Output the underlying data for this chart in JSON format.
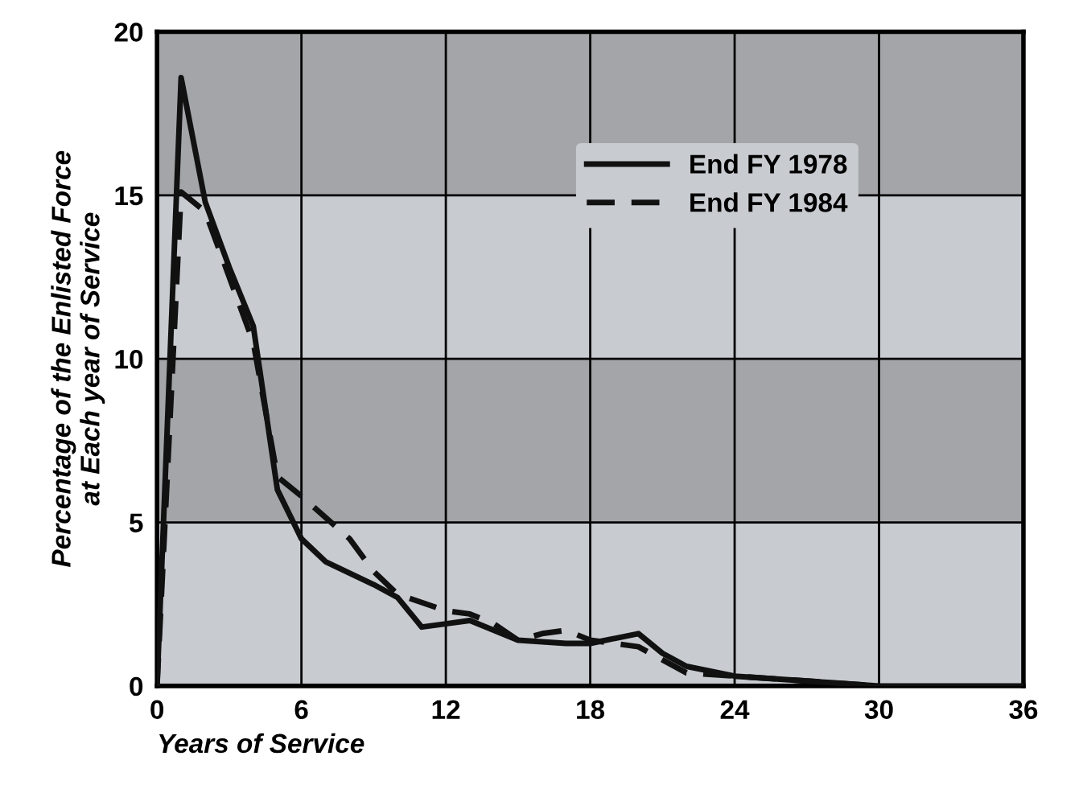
{
  "chart_data": {
    "type": "line",
    "xlabel": "Years of Service",
    "ylabel": "Percentage of the Enlisted Force\nat Each year of Service",
    "series": [
      {
        "name": "End FY 1978",
        "color": "#111111",
        "line_style": "solid",
        "x": [
          0,
          1,
          2,
          3,
          4,
          5,
          6,
          7,
          9,
          10,
          11,
          12,
          13,
          15,
          17,
          18,
          20,
          21,
          22,
          24,
          26,
          28,
          30,
          36
        ],
        "values": [
          0,
          18.6,
          14.8,
          12.8,
          11,
          6,
          4.5,
          3.8,
          3.1,
          2.7,
          1.8,
          1.9,
          2.0,
          1.4,
          1.3,
          1.3,
          1.6,
          1.0,
          0.6,
          0.3,
          0.2,
          0.1,
          0,
          0
        ]
      },
      {
        "name": "End FY 1984",
        "color": "#111111",
        "line_style": "dashed",
        "x": [
          0,
          1,
          2,
          3,
          4,
          5,
          6,
          8,
          9,
          10,
          12,
          13,
          14,
          15,
          16,
          17,
          18,
          20,
          21,
          22,
          24,
          28,
          30
        ],
        "values": [
          0,
          15.1,
          14.5,
          12.5,
          10.5,
          6.4,
          5.8,
          4.5,
          3.5,
          2.8,
          2.3,
          2.2,
          1.9,
          1.4,
          1.6,
          1.7,
          1.4,
          1.2,
          0.8,
          0.4,
          0.3,
          0.1,
          0
        ]
      }
    ],
    "bands": [
      {
        "axis": "y",
        "from": 0,
        "to": 5,
        "color": "#c8cbd0"
      },
      {
        "axis": "y",
        "from": 5,
        "to": 10,
        "color": "#a3a5a8"
      },
      {
        "axis": "y",
        "from": 10,
        "to": 15,
        "color": "#c8cbd0"
      },
      {
        "axis": "y",
        "from": 15,
        "to": 20,
        "color": "#a3a5a8"
      }
    ],
    "xlim": [
      0,
      36
    ],
    "ylim": [
      0,
      20
    ],
    "xticks": [
      0,
      6,
      12,
      18,
      24,
      30,
      36
    ],
    "yticks": [
      0,
      5,
      10,
      15,
      20
    ],
    "grid": true,
    "legend": "top right"
  }
}
